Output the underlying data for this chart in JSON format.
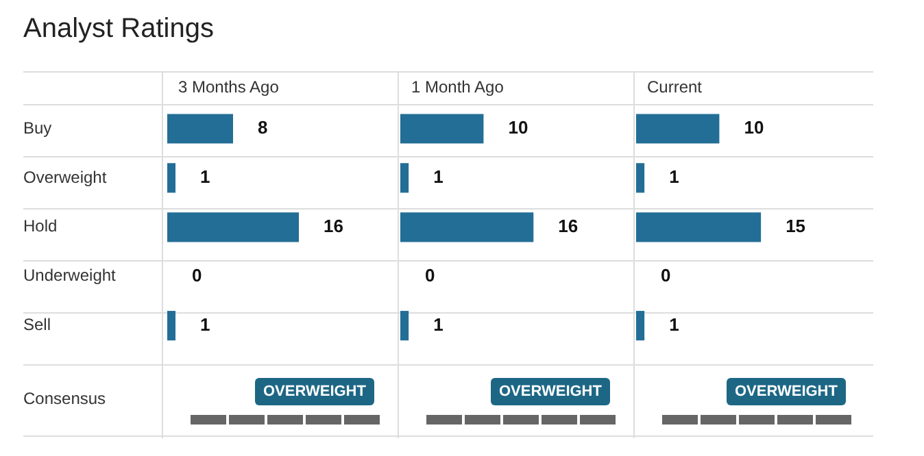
{
  "chart_data": [
    {
      "type": "other",
      "title": "Analyst Ratings",
      "annotations": [
        "Consensus"
      ]
    },
    {
      "type": "bar",
      "orientation": "horizontal",
      "title": "3 Months Ago",
      "categories": [
        "Buy",
        "Overweight",
        "Hold",
        "Underweight",
        "Sell"
      ],
      "values": [
        8,
        1,
        16,
        0,
        1
      ],
      "color": "#236e96",
      "data_labels": true,
      "annotations": [
        "OVERWEIGHT"
      ]
    },
    {
      "type": "bar",
      "orientation": "horizontal",
      "title": "1 Month Ago",
      "categories": [
        null,
        null,
        null,
        null,
        null
      ],
      "values": [
        10,
        1,
        16,
        0,
        1
      ],
      "color": "#236e96",
      "data_labels": true,
      "annotations": [
        "OVERWEIGHT"
      ]
    },
    {
      "type": "bar",
      "orientation": "horizontal",
      "title": "Current",
      "categories": [
        null,
        null,
        null,
        null,
        null
      ],
      "values": [
        10,
        1,
        15,
        0,
        1
      ],
      "color": "#236e96",
      "data_labels": true,
      "annotations": [
        "OVERWEIGHT"
      ]
    }
  ]
}
